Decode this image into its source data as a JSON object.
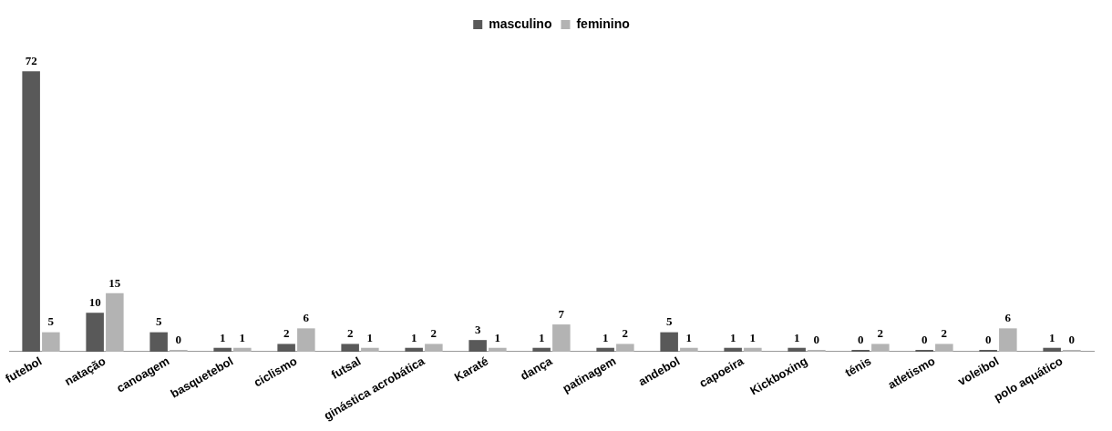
{
  "chart_data": {
    "type": "bar",
    "categories": [
      "futebol",
      "natação",
      "canoagem",
      "basquetebol",
      "ciclismo",
      "futsal",
      "ginástica acrobática",
      "Karaté",
      "dança",
      "patinagem",
      "andebol",
      "capoeira",
      "Kickboxing",
      "ténis",
      "atletismo",
      "voleibol",
      "polo aquático"
    ],
    "series": [
      {
        "name": "masculino",
        "color": "#595959",
        "values": [
          72,
          10,
          5,
          1,
          2,
          2,
          1,
          3,
          1,
          1,
          5,
          1,
          1,
          0,
          0,
          0,
          1
        ]
      },
      {
        "name": "feminino",
        "color": "#b3b3b3",
        "values": [
          5,
          15,
          0,
          1,
          6,
          1,
          2,
          1,
          7,
          2,
          1,
          1,
          0,
          2,
          2,
          6,
          0
        ]
      }
    ],
    "data_labels": true,
    "grid": false,
    "legend": "top"
  }
}
